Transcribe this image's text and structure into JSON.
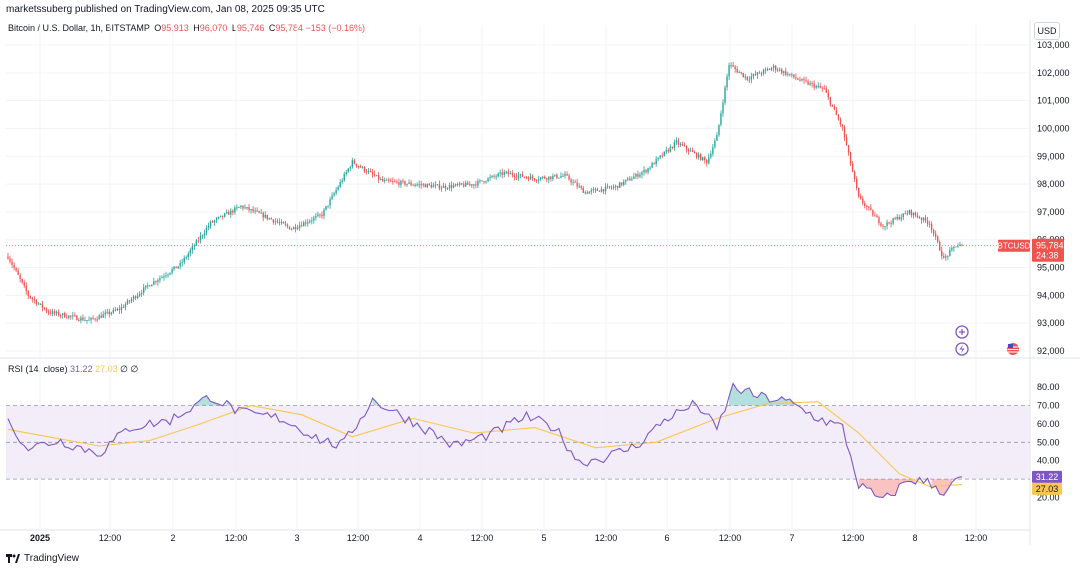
{
  "header": {
    "published": "marketssuberg published on TradingView.com, Jan 08, 2025 09:35 UTC",
    "symbol": "Bitcoin / U.S. Dollar, 1h, BITSTAMP",
    "open_label": "O",
    "open": "95,913",
    "high_label": "H",
    "high": "96,070",
    "low_label": "L",
    "low": "95,746",
    "close_label": "C",
    "close": "95,784",
    "change": "−153 (−0.16%)"
  },
  "currency": "USD",
  "price_tag": {
    "symbol": "BTCUSD",
    "price": "95,784",
    "countdown": "24:38"
  },
  "rsi_legend": {
    "label": "RSI (14, close)",
    "rsi": "31.22",
    "ma": "27.03",
    "icons": "∅ ∅"
  },
  "rsi_tags": {
    "rsi": "31.22",
    "ma": "27.03"
  },
  "footer": {
    "brand": "TradingView"
  },
  "colors": {
    "up": "#26a69a",
    "down": "#ef5350",
    "rsi": "#7e57c2",
    "ma": "#f9c74f",
    "band": "#ede7f6"
  },
  "chart_data": [
    {
      "type": "candlestick",
      "symbol": "BTCUSD",
      "interval": "1h",
      "ylim": [
        92000,
        103000
      ],
      "y_ticks": [
        "103,000",
        "102,000",
        "101,000",
        "100,000",
        "99,000",
        "98,000",
        "97,000",
        "96,000",
        "95,000",
        "94,000",
        "93,000",
        "92,000"
      ],
      "x_ticks": [
        "2025",
        "12:00",
        "2",
        "12:00",
        "3",
        "12:00",
        "4",
        "12:00",
        "5",
        "12:00",
        "6",
        "12:00",
        "7",
        "12:00",
        "8",
        "12:00"
      ],
      "last_price": 95784,
      "trend_points": [
        {
          "x": 0,
          "p": 95400
        },
        {
          "x": 10,
          "p": 94000
        },
        {
          "x": 20,
          "p": 93400
        },
        {
          "x": 40,
          "p": 93100
        },
        {
          "x": 55,
          "p": 93500
        },
        {
          "x": 70,
          "p": 94400
        },
        {
          "x": 85,
          "p": 95100
        },
        {
          "x": 100,
          "p": 96600
        },
        {
          "x": 115,
          "p": 97200
        },
        {
          "x": 125,
          "p": 96900
        },
        {
          "x": 140,
          "p": 96400
        },
        {
          "x": 155,
          "p": 96900
        },
        {
          "x": 170,
          "p": 98800
        },
        {
          "x": 185,
          "p": 98100
        },
        {
          "x": 200,
          "p": 98000
        },
        {
          "x": 215,
          "p": 97900
        },
        {
          "x": 230,
          "p": 98000
        },
        {
          "x": 245,
          "p": 98400
        },
        {
          "x": 260,
          "p": 98200
        },
        {
          "x": 275,
          "p": 98300
        },
        {
          "x": 285,
          "p": 97700
        },
        {
          "x": 300,
          "p": 97900
        },
        {
          "x": 315,
          "p": 98500
        },
        {
          "x": 330,
          "p": 99500
        },
        {
          "x": 345,
          "p": 98800
        },
        {
          "x": 350,
          "p": 99700
        },
        {
          "x": 356,
          "p": 102300
        },
        {
          "x": 365,
          "p": 101800
        },
        {
          "x": 378,
          "p": 102200
        },
        {
          "x": 392,
          "p": 101700
        },
        {
          "x": 403,
          "p": 101400
        },
        {
          "x": 412,
          "p": 100000
        },
        {
          "x": 420,
          "p": 97500
        },
        {
          "x": 432,
          "p": 96500
        },
        {
          "x": 445,
          "p": 97000
        },
        {
          "x": 455,
          "p": 96600
        },
        {
          "x": 462,
          "p": 95300
        },
        {
          "x": 468,
          "p": 95800
        },
        {
          "x": 471,
          "p": 95784
        }
      ],
      "rsi": {
        "ylim": [
          10,
          86
        ],
        "y_ticks": [
          "80.00",
          "70.00",
          "60.00",
          "50.00",
          "40.00",
          "30.00",
          "20.00"
        ],
        "overbought": 70,
        "oversold": 30,
        "mid": 50,
        "last_rsi": 31.22,
        "last_ma": 27.03,
        "rsi_points": [
          {
            "x": 0,
            "v": 61
          },
          {
            "x": 10,
            "v": 47
          },
          {
            "x": 25,
            "v": 51
          },
          {
            "x": 45,
            "v": 44
          },
          {
            "x": 60,
            "v": 58
          },
          {
            "x": 80,
            "v": 62
          },
          {
            "x": 100,
            "v": 75
          },
          {
            "x": 115,
            "v": 66
          },
          {
            "x": 135,
            "v": 63
          },
          {
            "x": 155,
            "v": 51
          },
          {
            "x": 165,
            "v": 48
          },
          {
            "x": 180,
            "v": 73
          },
          {
            "x": 195,
            "v": 64
          },
          {
            "x": 210,
            "v": 55
          },
          {
            "x": 220,
            "v": 48
          },
          {
            "x": 240,
            "v": 55
          },
          {
            "x": 255,
            "v": 64
          },
          {
            "x": 270,
            "v": 58
          },
          {
            "x": 282,
            "v": 39
          },
          {
            "x": 295,
            "v": 42
          },
          {
            "x": 310,
            "v": 48
          },
          {
            "x": 325,
            "v": 63
          },
          {
            "x": 340,
            "v": 71
          },
          {
            "x": 350,
            "v": 57
          },
          {
            "x": 358,
            "v": 80
          },
          {
            "x": 370,
            "v": 75
          },
          {
            "x": 385,
            "v": 72
          },
          {
            "x": 400,
            "v": 63
          },
          {
            "x": 412,
            "v": 58
          },
          {
            "x": 420,
            "v": 27
          },
          {
            "x": 432,
            "v": 18
          },
          {
            "x": 445,
            "v": 30
          },
          {
            "x": 455,
            "v": 28
          },
          {
            "x": 462,
            "v": 23
          },
          {
            "x": 471,
            "v": 31.22
          }
        ],
        "ma_points": [
          {
            "x": 0,
            "v": 57
          },
          {
            "x": 20,
            "v": 53
          },
          {
            "x": 45,
            "v": 48
          },
          {
            "x": 70,
            "v": 51
          },
          {
            "x": 95,
            "v": 60
          },
          {
            "x": 120,
            "v": 70
          },
          {
            "x": 145,
            "v": 65
          },
          {
            "x": 170,
            "v": 53
          },
          {
            "x": 200,
            "v": 63
          },
          {
            "x": 230,
            "v": 55
          },
          {
            "x": 260,
            "v": 58
          },
          {
            "x": 290,
            "v": 47
          },
          {
            "x": 320,
            "v": 50
          },
          {
            "x": 350,
            "v": 63
          },
          {
            "x": 375,
            "v": 71
          },
          {
            "x": 400,
            "v": 72
          },
          {
            "x": 420,
            "v": 55
          },
          {
            "x": 440,
            "v": 33
          },
          {
            "x": 455,
            "v": 26
          },
          {
            "x": 471,
            "v": 27.03
          }
        ]
      }
    }
  ]
}
